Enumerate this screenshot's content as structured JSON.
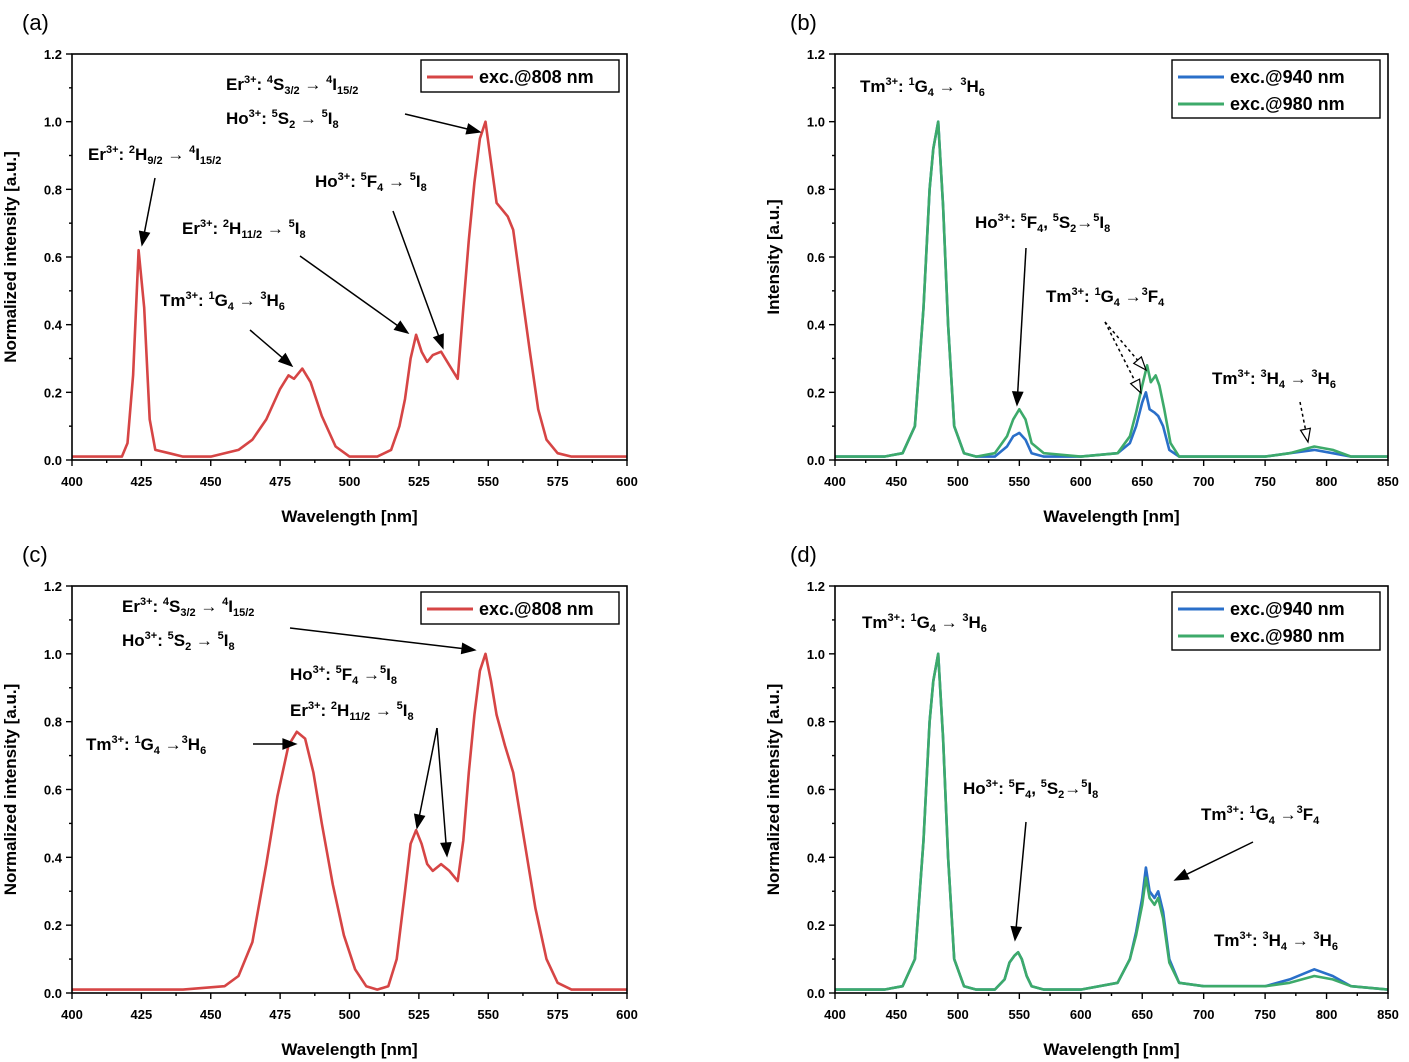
{
  "colors": {
    "red": "#d64545",
    "blue": "#2a6fc9",
    "green": "#3daa6a"
  },
  "chart_data": [
    {
      "id": "a",
      "type": "line",
      "panel_label": "(a)",
      "xlabel": "Wavelength [nm]",
      "ylabel": "Normalized intensity [a.u.]",
      "xlim": [
        400,
        600
      ],
      "ylim": [
        0,
        1.2
      ],
      "xticks": [
        400,
        425,
        450,
        475,
        500,
        525,
        550,
        575,
        600
      ],
      "yticks": [
        "0.0",
        "0.2",
        "0.4",
        "0.6",
        "0.8",
        "1.0",
        "1.2"
      ],
      "legend_position": "top-right",
      "series": [
        {
          "name": "exc.@808 nm",
          "color": "#d64545",
          "x": [
            400,
            410,
            418,
            420,
            422,
            424,
            426,
            428,
            430,
            435,
            440,
            450,
            460,
            465,
            470,
            475,
            478,
            480,
            483,
            486,
            490,
            495,
            500,
            505,
            510,
            515,
            518,
            520,
            522,
            524,
            526,
            528,
            530,
            533,
            536,
            539,
            541,
            543,
            545,
            547,
            549,
            551,
            553,
            555,
            557,
            559,
            562,
            565,
            568,
            571,
            575,
            580,
            590,
            600
          ],
          "y": [
            0.01,
            0.01,
            0.01,
            0.05,
            0.25,
            0.62,
            0.45,
            0.12,
            0.03,
            0.02,
            0.01,
            0.01,
            0.03,
            0.06,
            0.12,
            0.21,
            0.25,
            0.24,
            0.27,
            0.23,
            0.13,
            0.04,
            0.01,
            0.01,
            0.01,
            0.03,
            0.1,
            0.18,
            0.3,
            0.37,
            0.32,
            0.29,
            0.31,
            0.32,
            0.28,
            0.24,
            0.45,
            0.65,
            0.82,
            0.95,
            1.0,
            0.88,
            0.76,
            0.74,
            0.72,
            0.68,
            0.5,
            0.32,
            0.15,
            0.06,
            0.02,
            0.01,
            0.01,
            0.01
          ]
        }
      ],
      "annotations": [
        {
          "text": "Er3+: 2H9/2 → 4I15/2"
        },
        {
          "text": "Tm3+: 1G4 → 3H6"
        },
        {
          "text": "Er3+: 2H11/2 → 5I8"
        },
        {
          "text": "Ho3+: 5F4 → 5I8"
        },
        {
          "text": "Er3+: 4S3/2 → 4I15/2"
        },
        {
          "text": "Ho3+: 5S2 → 5I8"
        }
      ]
    },
    {
      "id": "b",
      "type": "line",
      "panel_label": "(b)",
      "xlabel": "Wavelength [nm]",
      "ylabel": "Intensity [a.u.]",
      "xlim": [
        400,
        850
      ],
      "ylim": [
        0,
        1.2
      ],
      "xticks": [
        400,
        450,
        500,
        550,
        600,
        650,
        700,
        750,
        800,
        850
      ],
      "yticks": [
        "0.0",
        "0.2",
        "0.4",
        "0.6",
        "0.8",
        "1.0",
        "1.2"
      ],
      "legend_position": "top-right",
      "series": [
        {
          "name": "exc.@940 nm",
          "color": "#2a6fc9",
          "x": [
            400,
            440,
            455,
            465,
            472,
            477,
            480,
            484,
            488,
            492,
            497,
            505,
            515,
            530,
            540,
            545,
            550,
            555,
            560,
            570,
            600,
            630,
            640,
            645,
            650,
            653,
            656,
            660,
            663,
            667,
            672,
            680,
            700,
            750,
            770,
            790,
            805,
            820,
            850
          ],
          "y": [
            0.01,
            0.01,
            0.02,
            0.1,
            0.45,
            0.8,
            0.92,
            1.0,
            0.75,
            0.4,
            0.1,
            0.02,
            0.01,
            0.01,
            0.04,
            0.07,
            0.08,
            0.06,
            0.02,
            0.01,
            0.01,
            0.02,
            0.05,
            0.1,
            0.17,
            0.2,
            0.15,
            0.14,
            0.13,
            0.1,
            0.03,
            0.01,
            0.01,
            0.01,
            0.02,
            0.03,
            0.02,
            0.01,
            0.01
          ]
        },
        {
          "name": "exc.@980 nm",
          "color": "#3daa6a",
          "x": [
            400,
            440,
            455,
            465,
            472,
            477,
            480,
            484,
            488,
            492,
            497,
            505,
            515,
            530,
            540,
            545,
            550,
            555,
            560,
            570,
            600,
            630,
            640,
            645,
            650,
            654,
            657,
            661,
            664,
            668,
            673,
            680,
            700,
            750,
            770,
            790,
            805,
            820,
            850
          ],
          "y": [
            0.01,
            0.01,
            0.02,
            0.1,
            0.45,
            0.8,
            0.92,
            1.0,
            0.75,
            0.4,
            0.1,
            0.02,
            0.01,
            0.02,
            0.07,
            0.12,
            0.15,
            0.12,
            0.05,
            0.02,
            0.01,
            0.02,
            0.07,
            0.14,
            0.22,
            0.28,
            0.23,
            0.25,
            0.22,
            0.15,
            0.05,
            0.01,
            0.01,
            0.01,
            0.02,
            0.04,
            0.03,
            0.01,
            0.01
          ]
        }
      ],
      "annotations": [
        {
          "text": "Tm3+: 1G4 → 3H6"
        },
        {
          "text": "Ho3+: 5F4, 5S2→5I8"
        },
        {
          "text": "Tm3+: 1G4 →3F4"
        },
        {
          "text": "Tm3+: 3H4 → 3H6"
        }
      ]
    },
    {
      "id": "c",
      "type": "line",
      "panel_label": "(c)",
      "xlabel": "Wavelength [nm]",
      "ylabel": "Normalized intensity [a.u.]",
      "xlim": [
        400,
        600
      ],
      "ylim": [
        0,
        1.2
      ],
      "xticks": [
        400,
        425,
        450,
        475,
        500,
        525,
        550,
        575,
        600
      ],
      "yticks": [
        "0.0",
        "0.2",
        "0.4",
        "0.6",
        "0.8",
        "1.0",
        "1.2"
      ],
      "legend_position": "top-right",
      "series": [
        {
          "name": "exc.@808 nm",
          "color": "#d64545",
          "x": [
            400,
            410,
            425,
            440,
            455,
            460,
            465,
            470,
            474,
            478,
            481,
            484,
            487,
            490,
            494,
            498,
            502,
            506,
            510,
            514,
            517,
            520,
            522,
            524,
            526,
            528,
            530,
            533,
            536,
            539,
            541,
            543,
            545,
            547,
            549,
            551,
            553,
            556,
            559,
            563,
            567,
            571,
            575,
            580,
            590,
            600
          ],
          "y": [
            0.01,
            0.01,
            0.01,
            0.01,
            0.02,
            0.05,
            0.15,
            0.38,
            0.58,
            0.73,
            0.77,
            0.75,
            0.65,
            0.5,
            0.32,
            0.17,
            0.07,
            0.02,
            0.01,
            0.02,
            0.1,
            0.3,
            0.44,
            0.48,
            0.44,
            0.38,
            0.36,
            0.38,
            0.36,
            0.33,
            0.45,
            0.65,
            0.82,
            0.95,
            1.0,
            0.92,
            0.82,
            0.73,
            0.65,
            0.45,
            0.25,
            0.1,
            0.03,
            0.01,
            0.01,
            0.01
          ]
        }
      ],
      "annotations": [
        {
          "text": "Er3+: 4S3/2 → 4I15/2"
        },
        {
          "text": "Ho3+: 5S2 → 5I8"
        },
        {
          "text": "Ho3+: 5F4 →5I8"
        },
        {
          "text": "Er3+: 2H11/2 → 5I8"
        },
        {
          "text": "Tm3+: 1G4 →3H6"
        }
      ]
    },
    {
      "id": "d",
      "type": "line",
      "panel_label": "(d)",
      "xlabel": "Wavelength [nm]",
      "ylabel": "Normalized intensity [a.u.]",
      "xlim": [
        400,
        850
      ],
      "ylim": [
        0,
        1.2
      ],
      "xticks": [
        400,
        450,
        500,
        550,
        600,
        650,
        700,
        750,
        800,
        850
      ],
      "yticks": [
        "0.0",
        "0.2",
        "0.4",
        "0.6",
        "0.8",
        "1.0",
        "1.2"
      ],
      "legend_position": "top-right",
      "series": [
        {
          "name": "exc.@940 nm",
          "color": "#2a6fc9",
          "x": [
            400,
            440,
            455,
            465,
            472,
            477,
            480,
            484,
            488,
            492,
            497,
            505,
            515,
            530,
            538,
            542,
            546,
            549,
            552,
            556,
            560,
            570,
            600,
            630,
            640,
            645,
            650,
            653,
            656,
            660,
            663,
            667,
            672,
            680,
            700,
            750,
            770,
            790,
            805,
            820,
            850
          ],
          "y": [
            0.01,
            0.01,
            0.02,
            0.1,
            0.45,
            0.8,
            0.92,
            1.0,
            0.75,
            0.4,
            0.1,
            0.02,
            0.01,
            0.01,
            0.04,
            0.09,
            0.11,
            0.12,
            0.1,
            0.05,
            0.02,
            0.01,
            0.01,
            0.03,
            0.1,
            0.18,
            0.28,
            0.37,
            0.3,
            0.28,
            0.3,
            0.24,
            0.1,
            0.03,
            0.02,
            0.02,
            0.04,
            0.07,
            0.05,
            0.02,
            0.01
          ]
        },
        {
          "name": "exc.@980 nm",
          "color": "#3daa6a",
          "x": [
            400,
            440,
            455,
            465,
            472,
            477,
            480,
            484,
            488,
            492,
            497,
            505,
            515,
            530,
            538,
            542,
            546,
            549,
            552,
            556,
            560,
            570,
            600,
            630,
            640,
            645,
            650,
            653,
            656,
            660,
            663,
            667,
            672,
            680,
            700,
            750,
            770,
            790,
            805,
            820,
            850
          ],
          "y": [
            0.01,
            0.01,
            0.02,
            0.1,
            0.45,
            0.8,
            0.92,
            1.0,
            0.75,
            0.4,
            0.1,
            0.02,
            0.01,
            0.01,
            0.04,
            0.09,
            0.11,
            0.12,
            0.1,
            0.05,
            0.02,
            0.01,
            0.01,
            0.03,
            0.1,
            0.17,
            0.26,
            0.34,
            0.28,
            0.26,
            0.28,
            0.22,
            0.09,
            0.03,
            0.02,
            0.02,
            0.03,
            0.05,
            0.04,
            0.02,
            0.01
          ]
        }
      ],
      "annotations": [
        {
          "text": "Tm3+: 1G4 → 3H6"
        },
        {
          "text": "Ho3+: 5F4, 5S2→5I8"
        },
        {
          "text": "Tm3+: 1G4 →3F4"
        },
        {
          "text": "Tm3+: 3H4 → 3H6"
        }
      ]
    }
  ]
}
